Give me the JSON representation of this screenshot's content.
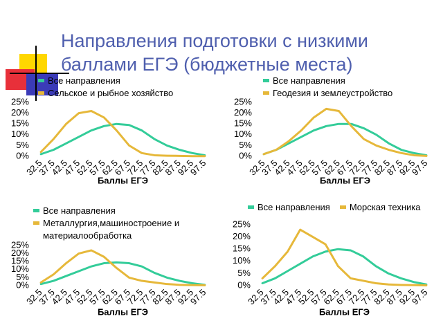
{
  "title": "Направления подготовки с низкими баллами ЕГЭ (бюджетные места)",
  "chart_data": [
    {
      "type": "line",
      "x_label": "Баллы ЕГЭ",
      "categories": [
        "32.5",
        "37.5",
        "42.5",
        "47.5",
        "52.5",
        "57.5",
        "62.5",
        "67.5",
        "72.5",
        "77.5",
        "82.5",
        "87.5",
        "92.5",
        "97.5"
      ],
      "ylim": [
        0,
        25
      ],
      "yticks": [
        {
          "value": 0,
          "label": "0%"
        },
        {
          "value": 5,
          "label": "5%"
        },
        {
          "value": 10,
          "label": "10%"
        },
        {
          "value": 15,
          "label": "15%"
        },
        {
          "value": 20,
          "label": "20%"
        },
        {
          "value": 25,
          "label": "25%"
        }
      ],
      "grid": false,
      "series": [
        {
          "name": "Все направления",
          "color": "#33cc99",
          "values": [
            1,
            3,
            6,
            9,
            12,
            14,
            15,
            14.5,
            12,
            8,
            5,
            3,
            1.5,
            0.5
          ]
        },
        {
          "name": "Сельское и рыбное хозяйство",
          "color": "#e6b83a",
          "values": [
            2,
            8,
            15,
            20,
            21,
            18,
            12,
            5,
            1.5,
            0.5,
            0.3,
            0.2,
            0.1,
            0.1
          ]
        }
      ]
    },
    {
      "type": "line",
      "x_label": "Баллы ЕГЭ",
      "categories": [
        "32.5",
        "37.5",
        "42.5",
        "47.5",
        "52.5",
        "57.5",
        "62.5",
        "67.5",
        "72.5",
        "77.5",
        "82.5",
        "87.5",
        "92.5",
        "97.5"
      ],
      "ylim": [
        0,
        25
      ],
      "yticks": [
        {
          "value": 0,
          "label": "0%"
        },
        {
          "value": 5,
          "label": "5%"
        },
        {
          "value": 10,
          "label": "10%"
        },
        {
          "value": 15,
          "label": "15%"
        },
        {
          "value": 20,
          "label": "20%"
        },
        {
          "value": 25,
          "label": "25%"
        }
      ],
      "grid": false,
      "series": [
        {
          "name": "Все направления",
          "color": "#33cc99",
          "values": [
            1,
            3,
            6,
            9,
            12,
            14,
            15,
            15,
            13,
            10,
            6,
            3,
            1.5,
            0.5
          ]
        },
        {
          "name": "Геодезия и землеустройство",
          "color": "#e6b83a",
          "values": [
            1,
            3,
            7,
            12,
            18,
            22,
            21,
            14,
            8,
            5,
            3,
            1.5,
            0.5,
            0.2
          ]
        }
      ]
    },
    {
      "type": "line",
      "x_label": "Баллы ЕГЭ",
      "categories": [
        "32.5",
        "37.5",
        "42.5",
        "47.5",
        "52.5",
        "57.5",
        "62.5",
        "67.5",
        "72.5",
        "77.5",
        "82.5",
        "87.5",
        "92.5",
        "97.5"
      ],
      "ylim": [
        0,
        25
      ],
      "yticks": [
        {
          "value": 0,
          "label": "0%"
        },
        {
          "value": 5,
          "label": "5%"
        },
        {
          "value": 10,
          "label": "10%"
        },
        {
          "value": 15,
          "label": "15%"
        },
        {
          "value": 20,
          "label": "20%"
        },
        {
          "value": 25,
          "label": "25%"
        }
      ],
      "grid": false,
      "series": [
        {
          "name": "Все направления",
          "color": "#33cc99",
          "values": [
            1,
            3,
            6,
            9,
            12,
            14,
            14.5,
            14,
            12,
            8,
            5,
            3,
            1.5,
            0.5
          ]
        },
        {
          "name": "Металлургия,машиностроение и материалообработка",
          "color": "#e6b83a",
          "values": [
            2,
            7,
            14,
            20,
            22,
            18,
            11,
            5,
            3,
            2,
            1,
            0.5,
            0.3,
            0.2
          ]
        }
      ]
    },
    {
      "type": "line",
      "x_label": "Баллы ЕГЭ",
      "categories": [
        "32.5",
        "37.5",
        "42.5",
        "47.5",
        "52.5",
        "57.5",
        "62.5",
        "67.5",
        "72.5",
        "77.5",
        "82.5",
        "87.5",
        "92.5",
        "97.5"
      ],
      "ylim": [
        0,
        25
      ],
      "yticks": [
        {
          "value": 0,
          "label": "0%"
        },
        {
          "value": 5,
          "label": "5%"
        },
        {
          "value": 10,
          "label": "10%"
        },
        {
          "value": 15,
          "label": "15%"
        },
        {
          "value": 20,
          "label": "20%"
        },
        {
          "value": 25,
          "label": "25%"
        }
      ],
      "grid": false,
      "series": [
        {
          "name": "Все направления",
          "color": "#33cc99",
          "values": [
            1,
            3,
            6,
            9,
            12,
            14,
            15,
            14.5,
            12,
            8,
            5,
            3,
            1.5,
            0.5
          ]
        },
        {
          "name": "Морская техника",
          "color": "#e6b83a",
          "values": [
            3,
            8,
            14,
            23,
            20,
            17,
            8,
            3,
            2,
            1,
            0.5,
            0.3,
            0.2,
            0.1
          ]
        }
      ]
    }
  ]
}
